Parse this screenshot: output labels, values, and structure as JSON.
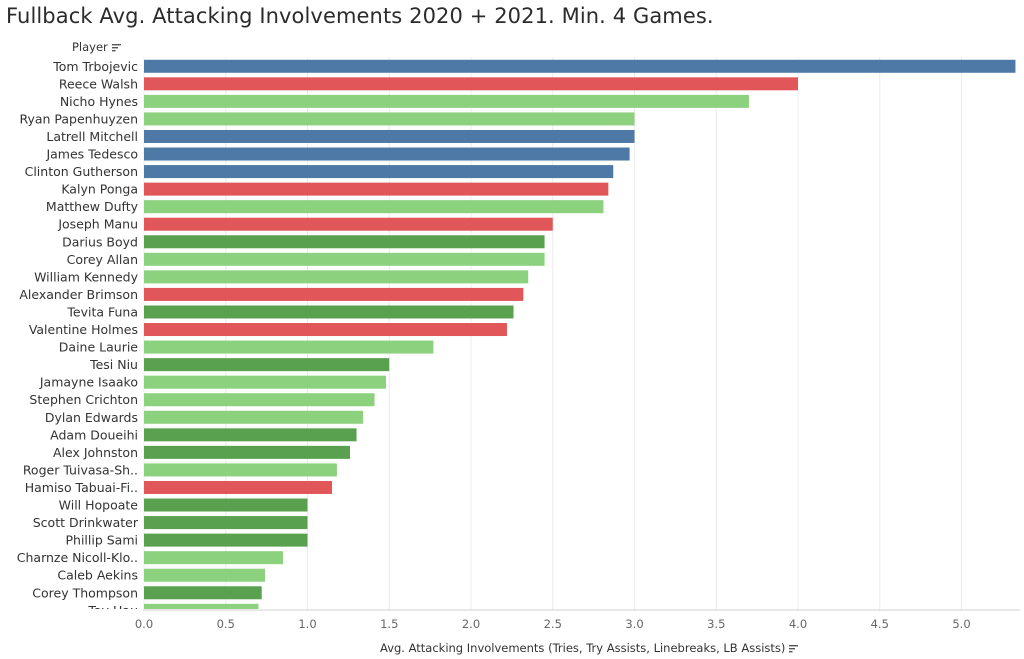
{
  "chart_data": {
    "type": "bar",
    "orientation": "horizontal",
    "title": "Fullback Avg. Attacking Involvements 2020 + 2021. Min. 4 Games.",
    "row_header": "Player",
    "xlabel": "Avg. Attacking Involvements (Tries, Try Assists, Linebreaks, LB Assists)",
    "xlim": [
      0,
      5.35
    ],
    "xticks": [
      0.0,
      0.5,
      1.0,
      1.5,
      2.0,
      2.5,
      3.0,
      3.5,
      4.0,
      4.5,
      5.0
    ],
    "xtick_labels": [
      "0.0",
      "0.5",
      "1.0",
      "1.5",
      "2.0",
      "2.5",
      "3.0",
      "3.5",
      "4.0",
      "4.5",
      "5.0"
    ],
    "grid": true,
    "colors": {
      "blue": "#4e79a7",
      "red": "#e15759",
      "lightgreen": "#8cd17d",
      "darkgreen": "#59a14f"
    },
    "bars": [
      {
        "label": "Tom Trbojevic",
        "value": 5.33,
        "color": "blue"
      },
      {
        "label": "Reece Walsh",
        "value": 4.0,
        "color": "red"
      },
      {
        "label": "Nicho Hynes",
        "value": 3.7,
        "color": "lightgreen"
      },
      {
        "label": "Ryan Papenhuyzen",
        "value": 3.0,
        "color": "lightgreen"
      },
      {
        "label": "Latrell Mitchell",
        "value": 3.0,
        "color": "blue"
      },
      {
        "label": "James Tedesco",
        "value": 2.97,
        "color": "blue"
      },
      {
        "label": "Clinton Gutherson",
        "value": 2.87,
        "color": "blue"
      },
      {
        "label": "Kalyn Ponga",
        "value": 2.84,
        "color": "red"
      },
      {
        "label": "Matthew Dufty",
        "value": 2.81,
        "color": "lightgreen"
      },
      {
        "label": "Joseph Manu",
        "value": 2.5,
        "color": "red"
      },
      {
        "label": "Darius Boyd",
        "value": 2.45,
        "color": "darkgreen"
      },
      {
        "label": "Corey Allan",
        "value": 2.45,
        "color": "lightgreen"
      },
      {
        "label": "William Kennedy",
        "value": 2.35,
        "color": "lightgreen"
      },
      {
        "label": "Alexander Brimson",
        "value": 2.32,
        "color": "red"
      },
      {
        "label": "Tevita Funa",
        "value": 2.26,
        "color": "darkgreen"
      },
      {
        "label": "Valentine Holmes",
        "value": 2.22,
        "color": "red"
      },
      {
        "label": "Daine Laurie",
        "value": 1.77,
        "color": "lightgreen"
      },
      {
        "label": "Tesi Niu",
        "value": 1.5,
        "color": "darkgreen"
      },
      {
        "label": "Jamayne Isaako",
        "value": 1.48,
        "color": "lightgreen"
      },
      {
        "label": "Stephen Crichton",
        "value": 1.41,
        "color": "lightgreen"
      },
      {
        "label": "Dylan Edwards",
        "value": 1.34,
        "color": "lightgreen"
      },
      {
        "label": "Adam Doueihi",
        "value": 1.3,
        "color": "darkgreen"
      },
      {
        "label": "Alex Johnston",
        "value": 1.26,
        "color": "darkgreen"
      },
      {
        "label": "Roger Tuivasa-Sh..",
        "value": 1.18,
        "color": "lightgreen"
      },
      {
        "label": "Hamiso Tabuai-Fi..",
        "value": 1.15,
        "color": "red"
      },
      {
        "label": "Will Hopoate",
        "value": 1.0,
        "color": "darkgreen"
      },
      {
        "label": "Scott Drinkwater",
        "value": 1.0,
        "color": "darkgreen"
      },
      {
        "label": "Phillip Sami",
        "value": 1.0,
        "color": "darkgreen"
      },
      {
        "label": "Charnze Nicoll-Klo..",
        "value": 0.85,
        "color": "lightgreen"
      },
      {
        "label": "Caleb Aekins",
        "value": 0.74,
        "color": "lightgreen"
      },
      {
        "label": "Corey Thompson",
        "value": 0.72,
        "color": "darkgreen"
      },
      {
        "label": "Tay Hau",
        "value": 0.7,
        "color": "lightgreen"
      }
    ]
  }
}
